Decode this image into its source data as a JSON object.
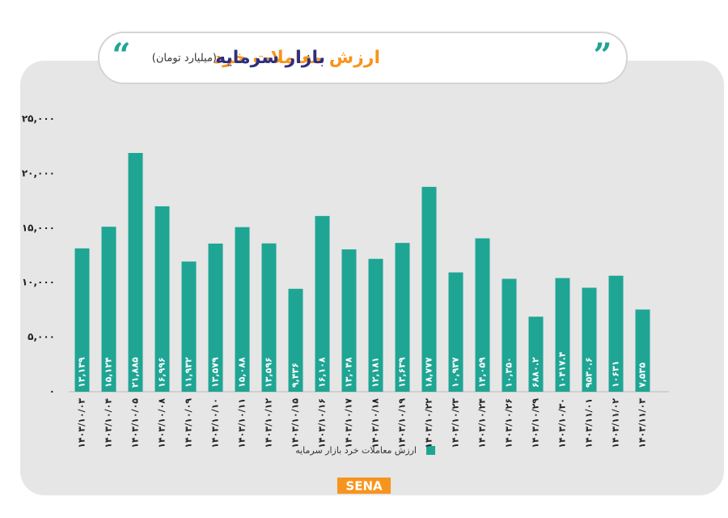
{
  "chart_data": {
    "type": "bar",
    "title": "ارزش معاملات خرد",
    "title_highlight": "بازار سرمایه",
    "subtitle": "(میلیارد تومان)",
    "brand": "SENA",
    "categories": [
      "۱۴۰۳/۱۰/۰۳",
      "۱۴۰۳/۱۰/۰۴",
      "۱۴۰۳/۱۰/۰۵",
      "۱۴۰۳/۱۰/۰۸",
      "۱۴۰۳/۱۰/۰۹",
      "۱۴۰۳/۱۰/۱۰",
      "۱۴۰۳/۱۰/۱۱",
      "۱۴۰۳/۱۰/۱۲",
      "۱۴۰۳/۱۰/۱۵",
      "۱۴۰۳/۱۰/۱۶",
      "۱۴۰۳/۱۰/۱۷",
      "۱۴۰۳/۱۰/۱۸",
      "۱۴۰۳/۱۰/۱۹",
      "۱۴۰۳/۱۰/۲۲",
      "۱۴۰۳/۱۰/۲۳",
      "۱۴۰۳/۱۰/۲۴",
      "۱۴۰۳/۱۰/۲۶",
      "۱۴۰۳/۱۰/۲۹",
      "۱۴۰۳/۱۰/۳۰",
      "۱۴۰۳/۱۱/۰۱",
      "۱۴۰۳/۱۱/۰۲",
      "۱۴۰۳/۱۱/۰۳"
    ],
    "series": [
      {
        "name": "ارزش معاملات خرد بازار سرمایه",
        "color": "#1fa594",
        "values": [
          13139,
          15124,
          21885,
          16996,
          11932,
          13579,
          15088,
          13596,
          9436,
          16108,
          13048,
          12181,
          13639,
          18777,
          10937,
          14059,
          10350,
          6880.2,
          10417.4,
          9530.6,
          10631,
          7535
        ],
        "value_labels": [
          "۱۳,۱۳۹",
          "۱۵,۱۲۴",
          "۲۱,۸۸۵",
          "۱۶,۹۹۶",
          "۱۱,۹۳۲",
          "۱۳,۵۷۹",
          "۱۵,۰۸۸",
          "۱۳,۵۹۶",
          "۹,۴۳۶",
          "۱۶,۱۰۸",
          "۱۳,۰۴۸",
          "۱۲,۱۸۱",
          "۱۳,۶۳۹",
          "۱۸,۷۷۷",
          "۱۰,۹۳۷",
          "۱۴,۰۵۹",
          "۱۰,۳۵۰",
          "۶۸۸۰.۲",
          "۱۰۴۱۷.۴",
          "۹۵۳۰.۶",
          "۱۰۶۳۱",
          "۷,۵۳۵"
        ]
      }
    ],
    "ylim": [
      0,
      25000
    ],
    "yticks": [
      {
        "value": 0,
        "label": "۰"
      },
      {
        "value": 5000,
        "label": "۵,۰۰۰"
      },
      {
        "value": 10000,
        "label": "۱۰,۰۰۰"
      },
      {
        "value": 15000,
        "label": "۱۵,۰۰۰"
      },
      {
        "value": 20000,
        "label": "۲۰,۰۰۰"
      },
      {
        "value": 25000,
        "label": "۲۵,۰۰۰"
      }
    ],
    "grid": false
  }
}
